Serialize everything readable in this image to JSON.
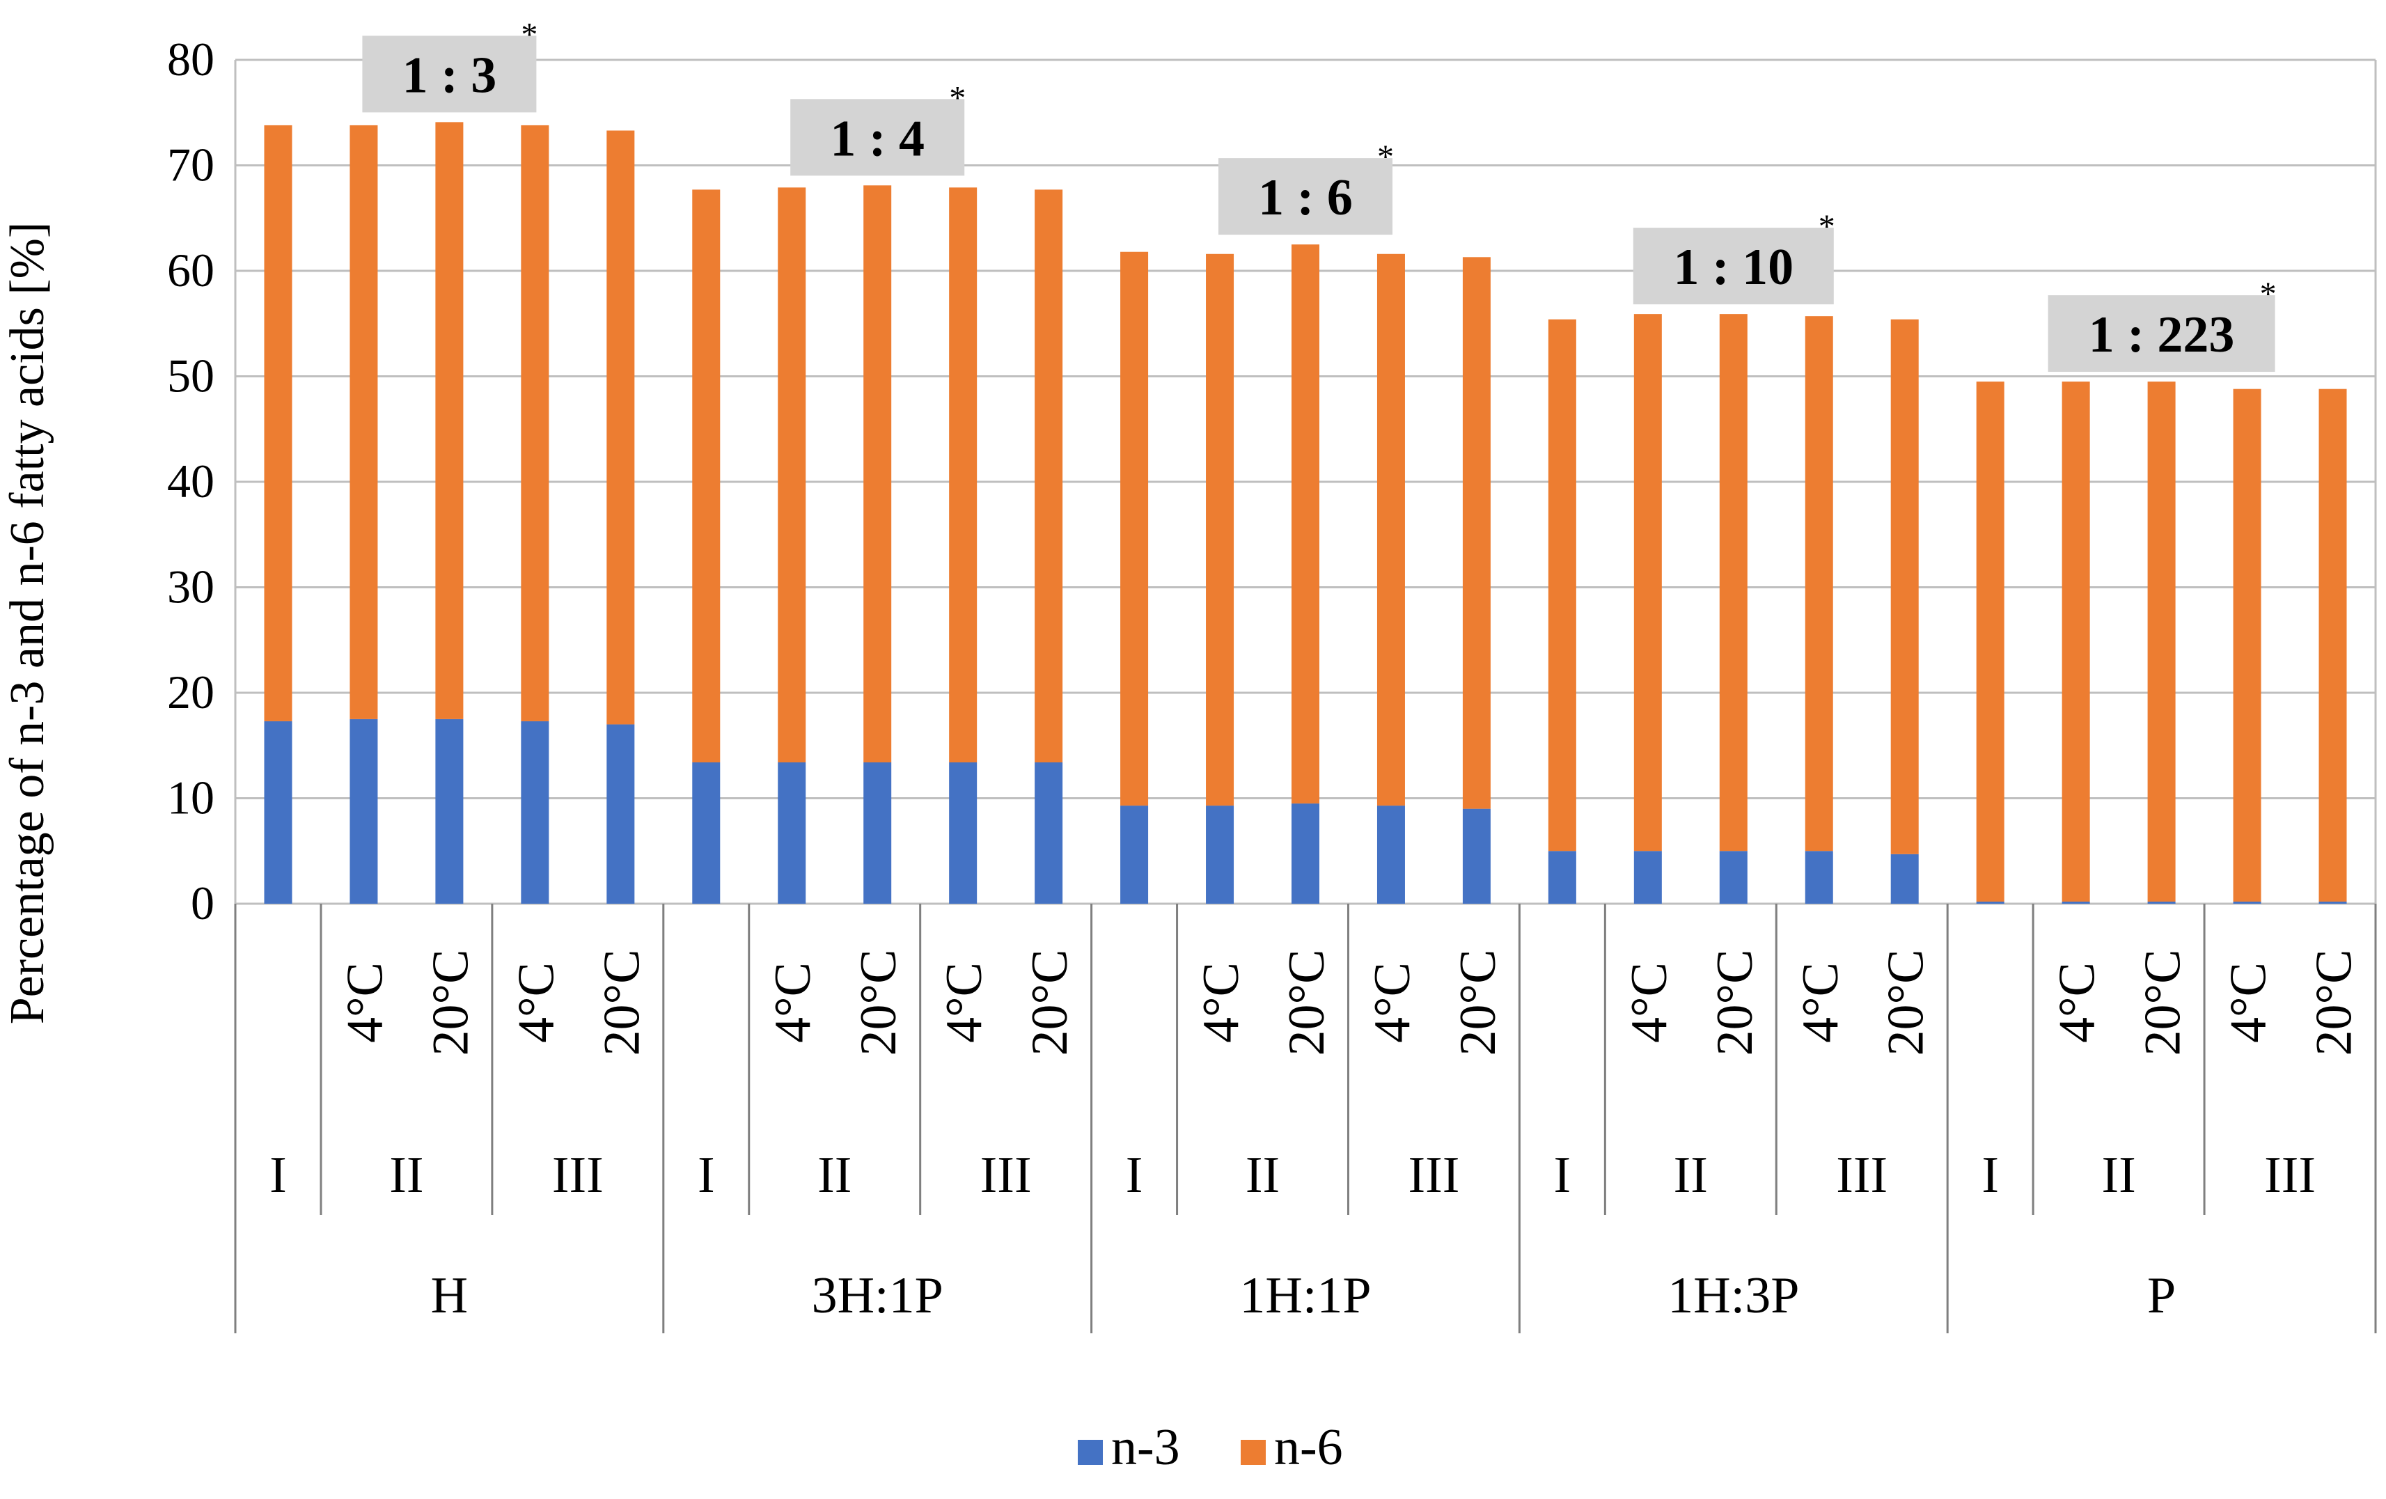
{
  "chart_data": {
    "type": "bar",
    "stacked": true,
    "ylabel": "Percentage of n-3 and n-6 fatty acids [%]",
    "xlabel": "",
    "ylim": [
      0,
      80
    ],
    "yticks": [
      "0",
      "10",
      "20",
      "30",
      "40",
      "50",
      "60",
      "70",
      "80"
    ],
    "grid": true,
    "legend_position": "bottom",
    "groups": [
      {
        "label": "H",
        "ratio": "1 : 3",
        "star": "*",
        "bars": [
          {
            "sub": "I",
            "temp": "",
            "n3": 17.3,
            "n6": 56.5
          },
          {
            "sub": "II",
            "temp": "4°C",
            "n3": 17.5,
            "n6": 56.3
          },
          {
            "sub": "II",
            "temp": "20°C",
            "n3": 17.5,
            "n6": 56.6
          },
          {
            "sub": "III",
            "temp": "4°C",
            "n3": 17.3,
            "n6": 56.5
          },
          {
            "sub": "III",
            "temp": "20°C",
            "n3": 17.0,
            "n6": 56.3
          }
        ]
      },
      {
        "label": "3H:1P",
        "ratio": "1 : 4",
        "star": "*",
        "bars": [
          {
            "sub": "I",
            "temp": "",
            "n3": 13.4,
            "n6": 54.3
          },
          {
            "sub": "II",
            "temp": "4°C",
            "n3": 13.4,
            "n6": 54.5
          },
          {
            "sub": "II",
            "temp": "20°C",
            "n3": 13.4,
            "n6": 54.7
          },
          {
            "sub": "III",
            "temp": "4°C",
            "n3": 13.4,
            "n6": 54.5
          },
          {
            "sub": "III",
            "temp": "20°C",
            "n3": 13.4,
            "n6": 54.3
          }
        ]
      },
      {
        "label": "1H:1P",
        "ratio": "1 : 6",
        "star": "*",
        "bars": [
          {
            "sub": "I",
            "temp": "",
            "n3": 9.3,
            "n6": 52.5
          },
          {
            "sub": "II",
            "temp": "4°C",
            "n3": 9.3,
            "n6": 52.3
          },
          {
            "sub": "II",
            "temp": "20°C",
            "n3": 9.5,
            "n6": 53.0
          },
          {
            "sub": "III",
            "temp": "4°C",
            "n3": 9.3,
            "n6": 52.3
          },
          {
            "sub": "III",
            "temp": "20°C",
            "n3": 9.0,
            "n6": 52.3
          }
        ]
      },
      {
        "label": "1H:3P",
        "ratio": "1 : 10",
        "star": "*",
        "bars": [
          {
            "sub": "I",
            "temp": "",
            "n3": 5.0,
            "n6": 50.4
          },
          {
            "sub": "II",
            "temp": "4°C",
            "n3": 5.0,
            "n6": 50.9
          },
          {
            "sub": "II",
            "temp": "20°C",
            "n3": 5.0,
            "n6": 50.9
          },
          {
            "sub": "III",
            "temp": "4°C",
            "n3": 5.0,
            "n6": 50.7
          },
          {
            "sub": "III",
            "temp": "20°C",
            "n3": 4.7,
            "n6": 50.7
          }
        ]
      },
      {
        "label": "P",
        "ratio": "1 : 223",
        "star": "*",
        "bars": [
          {
            "sub": "I",
            "temp": "",
            "n3": 0.2,
            "n6": 49.3
          },
          {
            "sub": "II",
            "temp": "4°C",
            "n3": 0.2,
            "n6": 49.3
          },
          {
            "sub": "II",
            "temp": "20°C",
            "n3": 0.2,
            "n6": 49.3
          },
          {
            "sub": "III",
            "temp": "4°C",
            "n3": 0.2,
            "n6": 48.6
          },
          {
            "sub": "III",
            "temp": "20°C",
            "n3": 0.2,
            "n6": 48.6
          }
        ]
      }
    ],
    "series": [
      {
        "name": "n-3",
        "key": "n3",
        "color": "#4472C4"
      },
      {
        "name": "n-6",
        "key": "n6",
        "color": "#ED7D31"
      }
    ]
  },
  "colors": {
    "grid": "#bfbfbf",
    "axis": "#7f7f7f",
    "ratio_box": "#d4d4d4"
  }
}
